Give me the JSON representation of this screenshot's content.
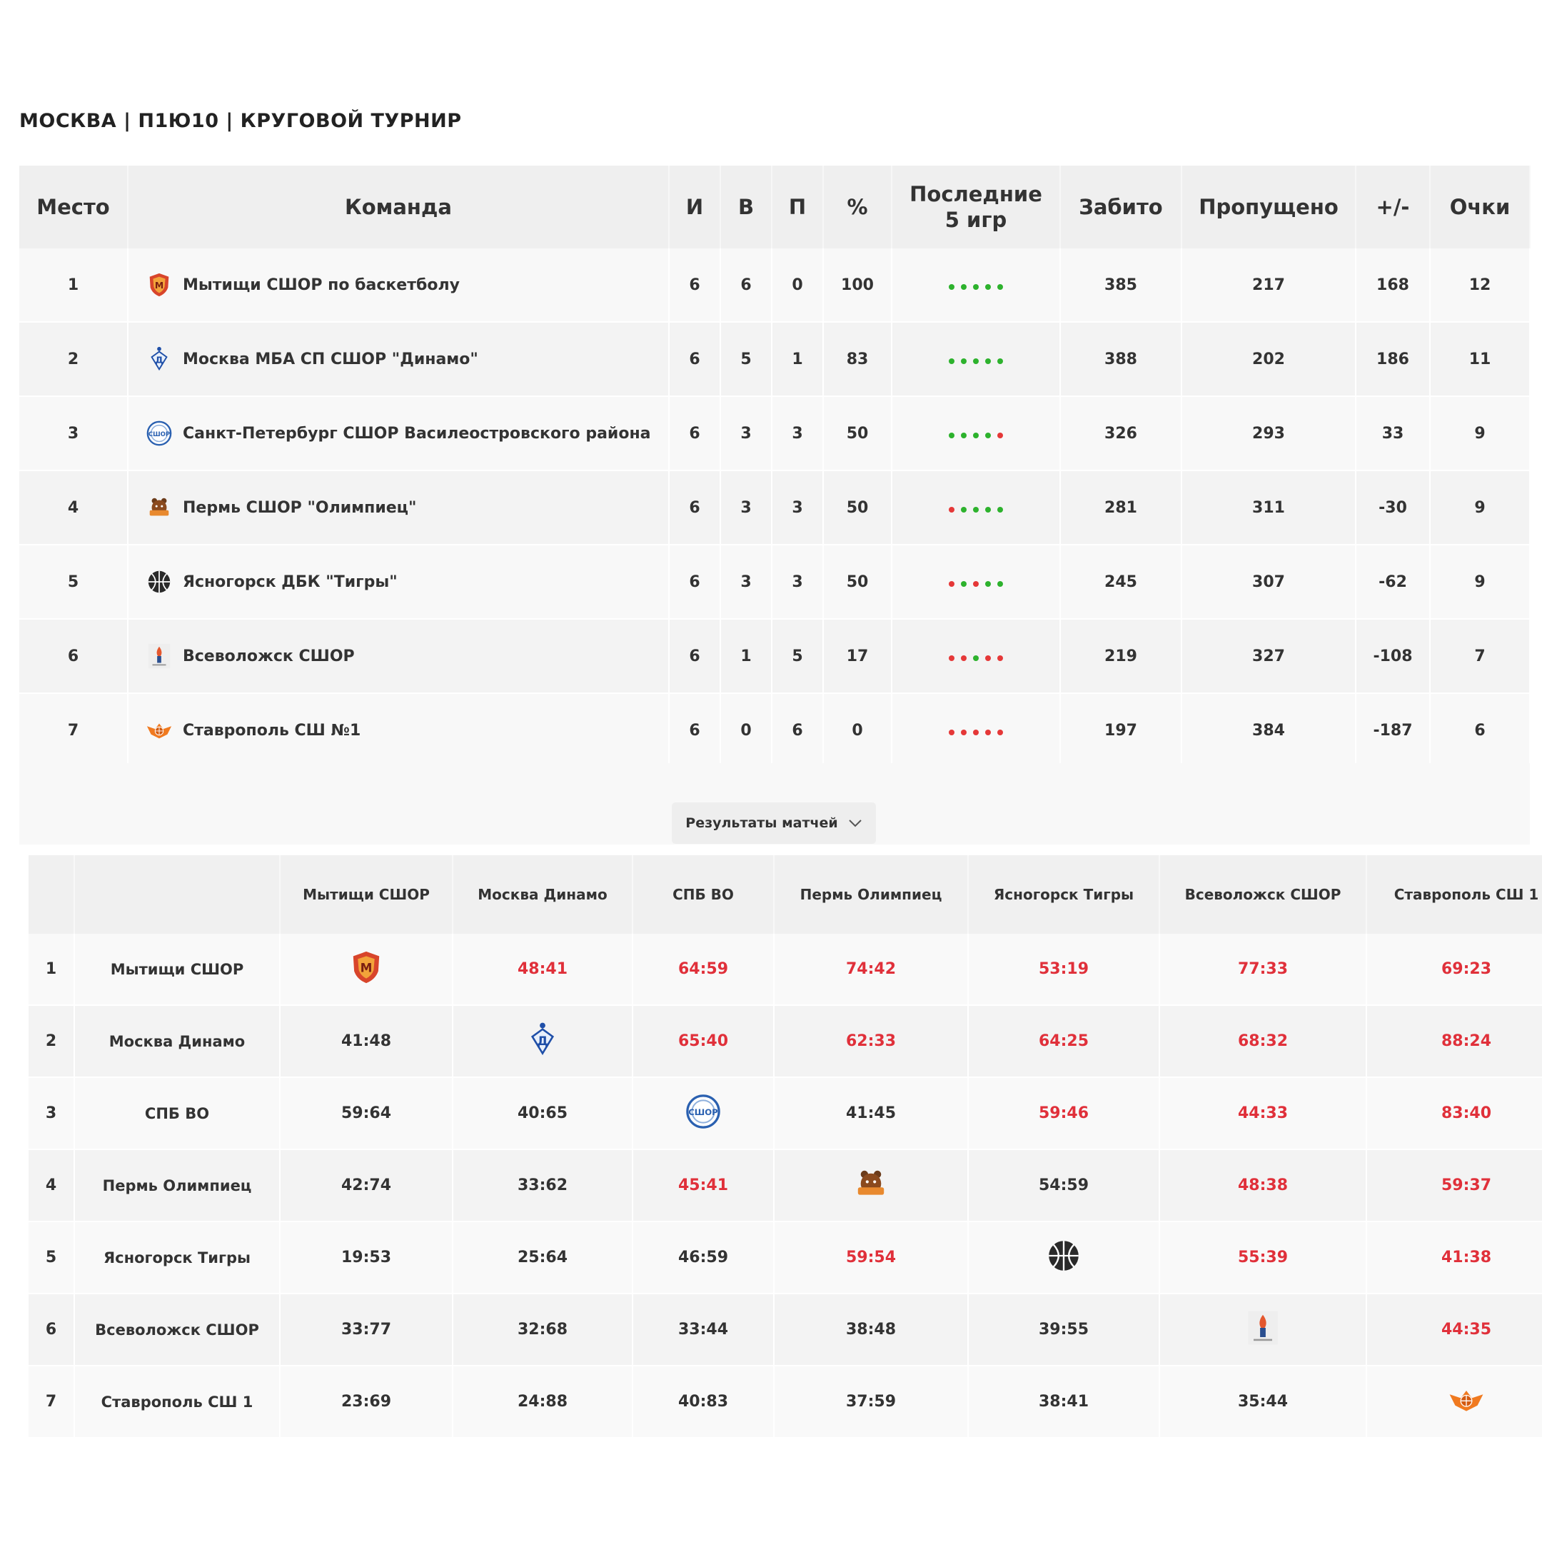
{
  "title": "МОСКВА | П1Ю10 | КРУГОВОЙ ТУРНИР",
  "standings": {
    "headers": {
      "place": "Место",
      "team": "Команда",
      "games": "И",
      "wins": "В",
      "losses": "П",
      "percent": "%",
      "last5_line1": "Последние",
      "last5_line2": "5 игр",
      "scored": "Забито",
      "conceded": "Пропущено",
      "diff": "+/-",
      "points": "Очки"
    },
    "rows": [
      {
        "place": "1",
        "team": "Мытищи СШОР по баскетболу",
        "games": "6",
        "wins": "6",
        "losses": "0",
        "percent": "100",
        "last5": [
          "W",
          "W",
          "W",
          "W",
          "W"
        ],
        "scored": "385",
        "conceded": "217",
        "diff": "168",
        "points": "12",
        "logo": "mytishchi-logo-icon"
      },
      {
        "place": "2",
        "team": "Москва МБА СП СШОР \"Динамо\"",
        "games": "6",
        "wins": "5",
        "losses": "1",
        "percent": "83",
        "last5": [
          "W",
          "W",
          "W",
          "W",
          "W"
        ],
        "scored": "388",
        "conceded": "202",
        "diff": "186",
        "points": "11",
        "logo": "dynamo-logo-icon"
      },
      {
        "place": "3",
        "team": "Санкт-Петербург СШОР Василеостровского района",
        "games": "6",
        "wins": "3",
        "losses": "3",
        "percent": "50",
        "last5": [
          "W",
          "W",
          "W",
          "W",
          "L"
        ],
        "scored": "326",
        "conceded": "293",
        "diff": "33",
        "points": "9",
        "logo": "spb-logo-icon"
      },
      {
        "place": "4",
        "team": "Пермь СШОР \"Олимпиец\"",
        "games": "6",
        "wins": "3",
        "losses": "3",
        "percent": "50",
        "last5": [
          "L",
          "W",
          "W",
          "W",
          "W"
        ],
        "scored": "281",
        "conceded": "311",
        "diff": "-30",
        "points": "9",
        "logo": "perm-logo-icon"
      },
      {
        "place": "5",
        "team": "Ясногорск ДБК \"Тигры\"",
        "games": "6",
        "wins": "3",
        "losses": "3",
        "percent": "50",
        "last5": [
          "L",
          "W",
          "L",
          "W",
          "W"
        ],
        "scored": "245",
        "conceded": "307",
        "diff": "-62",
        "points": "9",
        "logo": "basketball-icon"
      },
      {
        "place": "6",
        "team": "Всеволожск СШОР",
        "games": "6",
        "wins": "1",
        "losses": "5",
        "percent": "17",
        "last5": [
          "L",
          "L",
          "W",
          "L",
          "L"
        ],
        "scored": "219",
        "conceded": "327",
        "diff": "-108",
        "points": "7",
        "logo": "vsevolozhsk-logo-icon"
      },
      {
        "place": "7",
        "team": "Ставрополь СШ №1",
        "games": "6",
        "wins": "0",
        "losses": "6",
        "percent": "0",
        "last5": [
          "L",
          "L",
          "L",
          "L",
          "L"
        ],
        "scored": "197",
        "conceded": "384",
        "diff": "-187",
        "points": "6",
        "logo": "stavropol-logo-icon"
      }
    ]
  },
  "results_button": {
    "label": "Результаты матчей",
    "icon": "chevron-down-icon"
  },
  "matrix": {
    "columns": [
      "Мытищи СШОР",
      "Москва Динамо",
      "СПБ ВО",
      "Пермь Олимпиец",
      "Ясногорск Тигры",
      "Всеволожск СШОР",
      "Ставрополь СШ 1"
    ],
    "rows": [
      {
        "num": "1",
        "name": "Мытищи СШОР",
        "cells": [
          "",
          "48:41",
          "64:59",
          "74:42",
          "53:19",
          "77:33",
          "69:23"
        ]
      },
      {
        "num": "2",
        "name": "Москва Динамо",
        "cells": [
          "41:48",
          "",
          "65:40",
          "62:33",
          "64:25",
          "68:32",
          "88:24"
        ]
      },
      {
        "num": "3",
        "name": "СПБ ВО",
        "cells": [
          "59:64",
          "40:65",
          "",
          "41:45",
          "59:46",
          "44:33",
          "83:40"
        ]
      },
      {
        "num": "4",
        "name": "Пермь Олимпиец",
        "cells": [
          "42:74",
          "33:62",
          "45:41",
          "",
          "54:59",
          "48:38",
          "59:37"
        ]
      },
      {
        "num": "5",
        "name": "Ясногорск Тигры",
        "cells": [
          "19:53",
          "25:64",
          "46:59",
          "59:54",
          "",
          "55:39",
          "41:38"
        ]
      },
      {
        "num": "6",
        "name": "Всеволожск СШОР",
        "cells": [
          "33:77",
          "32:68",
          "33:44",
          "38:48",
          "39:55",
          "",
          "44:35"
        ]
      },
      {
        "num": "7",
        "name": "Ставрополь СШ 1",
        "cells": [
          "23:69",
          "24:88",
          "40:83",
          "37:59",
          "38:41",
          "35:44",
          ""
        ]
      }
    ]
  },
  "colors": {
    "win": "#2db22d",
    "loss": "#e53838",
    "score_win": "#e0303a",
    "header_bg": "#efefef"
  }
}
